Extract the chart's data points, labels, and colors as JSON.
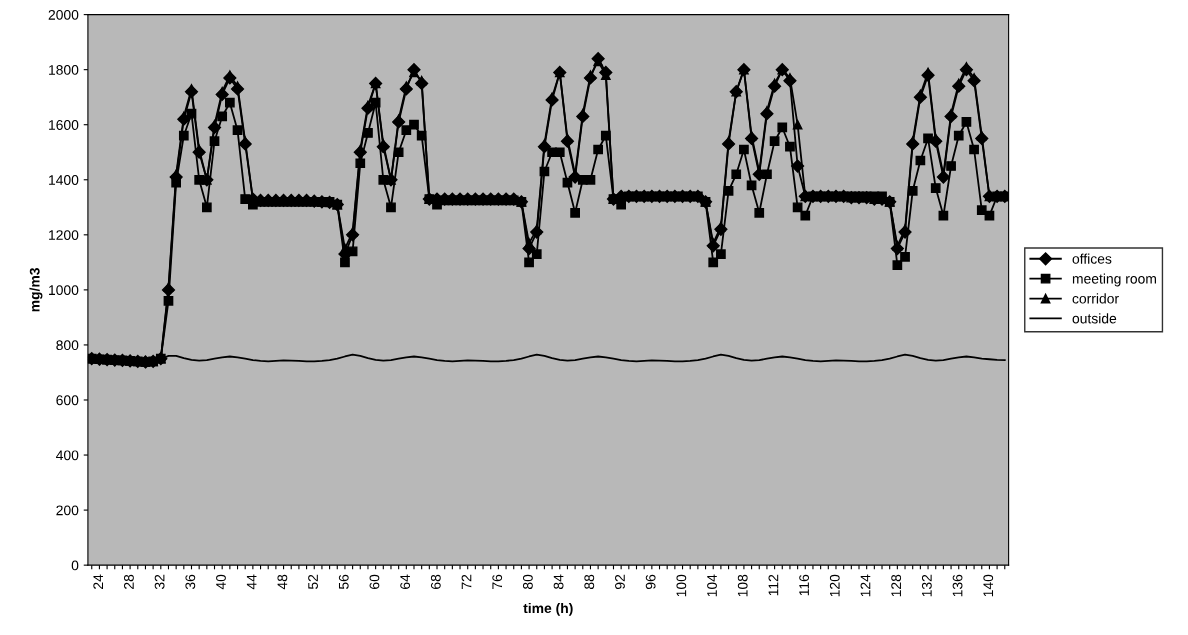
{
  "chart_data": {
    "type": "line",
    "xlabel": "time (h)",
    "ylabel": "mg/m3",
    "x": [
      23,
      24,
      25,
      26,
      27,
      28,
      29,
      30,
      31,
      32,
      33,
      34,
      35,
      36,
      37,
      38,
      39,
      40,
      41,
      42,
      43,
      44,
      45,
      46,
      47,
      48,
      49,
      50,
      51,
      52,
      53,
      54,
      55,
      56,
      57,
      58,
      59,
      60,
      61,
      62,
      63,
      64,
      65,
      66,
      67,
      68,
      69,
      70,
      71,
      72,
      73,
      74,
      75,
      76,
      77,
      78,
      79,
      80,
      81,
      82,
      83,
      84,
      85,
      86,
      87,
      88,
      89,
      90,
      91,
      92,
      93,
      94,
      95,
      96,
      97,
      98,
      99,
      100,
      101,
      102,
      103,
      104,
      105,
      106,
      107,
      108,
      109,
      110,
      111,
      112,
      113,
      114,
      115,
      116,
      117,
      118,
      119,
      120,
      121,
      122,
      123,
      124,
      125,
      126,
      127,
      128,
      129,
      130,
      131,
      132,
      133,
      134,
      135,
      136,
      137,
      138,
      139,
      140,
      141,
      142
    ],
    "series": [
      {
        "name": "offices",
        "color": "#000000",
        "marker": "diamond",
        "values": [
          750,
          748,
          747,
          745,
          744,
          742,
          740,
          738,
          740,
          750,
          1000,
          1410,
          1620,
          1720,
          1500,
          1400,
          1590,
          1710,
          1770,
          1730,
          1530,
          1330,
          1325,
          1325,
          1325,
          1325,
          1325,
          1325,
          1325,
          1322,
          1320,
          1318,
          1310,
          1130,
          1200,
          1500,
          1660,
          1750,
          1520,
          1400,
          1610,
          1730,
          1800,
          1750,
          1330,
          1330,
          1330,
          1330,
          1330,
          1330,
          1330,
          1330,
          1330,
          1330,
          1330,
          1330,
          1320,
          1150,
          1210,
          1520,
          1690,
          1790,
          1540,
          1410,
          1630,
          1770,
          1840,
          1790,
          1330,
          1340,
          1340,
          1340,
          1340,
          1340,
          1340,
          1340,
          1340,
          1340,
          1340,
          1340,
          1320,
          1160,
          1220,
          1530,
          1720,
          1800,
          1550,
          1420,
          1640,
          1740,
          1800,
          1760,
          1450,
          1340,
          1340,
          1340,
          1340,
          1340,
          1340,
          1335,
          1335,
          1335,
          1330,
          1330,
          1320,
          1150,
          1210,
          1530,
          1700,
          1780,
          1540,
          1410,
          1630,
          1740,
          1800,
          1760,
          1550,
          1340,
          1340,
          1340
        ]
      },
      {
        "name": "meeting room",
        "color": "#000000",
        "marker": "square",
        "values": [
          750,
          748,
          747,
          745,
          744,
          742,
          740,
          738,
          740,
          750,
          960,
          1390,
          1560,
          1640,
          1400,
          1300,
          1540,
          1630,
          1680,
          1580,
          1330,
          1310,
          1320,
          1320,
          1320,
          1320,
          1320,
          1320,
          1320,
          1320,
          1320,
          1320,
          1310,
          1100,
          1140,
          1460,
          1570,
          1680,
          1400,
          1300,
          1500,
          1580,
          1600,
          1560,
          1330,
          1310,
          1325,
          1325,
          1325,
          1325,
          1325,
          1325,
          1325,
          1325,
          1325,
          1325,
          1320,
          1100,
          1130,
          1430,
          1500,
          1500,
          1390,
          1280,
          1400,
          1400,
          1510,
          1560,
          1330,
          1310,
          1340,
          1340,
          1340,
          1340,
          1340,
          1340,
          1340,
          1340,
          1340,
          1340,
          1320,
          1100,
          1130,
          1360,
          1420,
          1510,
          1380,
          1280,
          1420,
          1540,
          1590,
          1520,
          1300,
          1270,
          1340,
          1340,
          1340,
          1340,
          1340,
          1340,
          1340,
          1340,
          1340,
          1340,
          1320,
          1090,
          1120,
          1360,
          1470,
          1550,
          1370,
          1270,
          1450,
          1560,
          1610,
          1510,
          1290,
          1270,
          1340,
          1340
        ]
      },
      {
        "name": "corridor",
        "color": "#000000",
        "marker": "triangle",
        "values": [
          750,
          748,
          747,
          745,
          744,
          742,
          740,
          738,
          740,
          750,
          1010,
          1420,
          1630,
          1730,
          1510,
          1400,
          1600,
          1720,
          1780,
          1740,
          1540,
          1330,
          1325,
          1325,
          1325,
          1325,
          1325,
          1325,
          1325,
          1322,
          1320,
          1318,
          1310,
          1150,
          1210,
          1510,
          1670,
          1750,
          1530,
          1400,
          1620,
          1740,
          1790,
          1760,
          1330,
          1330,
          1330,
          1330,
          1330,
          1330,
          1330,
          1330,
          1330,
          1330,
          1330,
          1330,
          1320,
          1170,
          1220,
          1530,
          1700,
          1790,
          1550,
          1420,
          1640,
          1780,
          1830,
          1780,
          1330,
          1340,
          1340,
          1340,
          1340,
          1340,
          1340,
          1340,
          1340,
          1340,
          1340,
          1340,
          1320,
          1170,
          1230,
          1540,
          1720,
          1800,
          1560,
          1430,
          1650,
          1750,
          1800,
          1770,
          1600,
          1340,
          1340,
          1340,
          1340,
          1340,
          1340,
          1335,
          1335,
          1335,
          1330,
          1330,
          1320,
          1160,
          1220,
          1540,
          1710,
          1790,
          1550,
          1420,
          1640,
          1750,
          1810,
          1770,
          1560,
          1340,
          1340,
          1340
        ]
      },
      {
        "name": "outside",
        "color": "#000000",
        "marker": "none",
        "values": [
          745,
          745,
          744,
          743,
          742,
          740,
          738,
          737,
          740,
          748,
          760,
          760,
          752,
          746,
          743,
          745,
          750,
          755,
          758,
          755,
          750,
          745,
          742,
          740,
          742,
          744,
          743,
          742,
          740,
          740,
          742,
          745,
          750,
          758,
          765,
          760,
          752,
          746,
          743,
          745,
          750,
          755,
          758,
          755,
          750,
          745,
          742,
          740,
          742,
          744,
          743,
          742,
          740,
          740,
          742,
          745,
          750,
          758,
          765,
          760,
          752,
          746,
          743,
          745,
          750,
          755,
          758,
          755,
          750,
          745,
          742,
          740,
          742,
          744,
          743,
          742,
          740,
          740,
          742,
          745,
          750,
          758,
          765,
          760,
          752,
          746,
          743,
          745,
          750,
          755,
          758,
          755,
          750,
          745,
          742,
          740,
          742,
          744,
          743,
          742,
          740,
          740,
          742,
          745,
          750,
          758,
          765,
          760,
          752,
          746,
          743,
          745,
          750,
          755,
          758,
          755,
          750,
          748,
          746,
          745
        ]
      }
    ],
    "xlim": [
      22.5,
      142.5
    ],
    "xticks": [
      {
        "value": 23,
        "label": null
      },
      {
        "value": 24,
        "label": "24"
      },
      {
        "value": 25,
        "label": null
      },
      {
        "value": 26,
        "label": null
      },
      {
        "value": 27,
        "label": null
      },
      {
        "value": 28,
        "label": "28"
      },
      {
        "value": 29,
        "label": null
      },
      {
        "value": 30,
        "label": null
      },
      {
        "value": 31,
        "label": null
      },
      {
        "value": 32,
        "label": "32"
      },
      {
        "value": 33,
        "label": null
      },
      {
        "value": 34,
        "label": null
      },
      {
        "value": 35,
        "label": null
      },
      {
        "value": 36,
        "label": "36"
      },
      {
        "value": 37,
        "label": null
      },
      {
        "value": 38,
        "label": null
      },
      {
        "value": 39,
        "label": null
      },
      {
        "value": 40,
        "label": "40"
      },
      {
        "value": 41,
        "label": null
      },
      {
        "value": 42,
        "label": null
      },
      {
        "value": 43,
        "label": null
      },
      {
        "value": 44,
        "label": "44"
      },
      {
        "value": 45,
        "label": null
      },
      {
        "value": 46,
        "label": null
      },
      {
        "value": 47,
        "label": null
      },
      {
        "value": 48,
        "label": "48"
      },
      {
        "value": 49,
        "label": null
      },
      {
        "value": 50,
        "label": null
      },
      {
        "value": 51,
        "label": null
      },
      {
        "value": 52,
        "label": "52"
      },
      {
        "value": 53,
        "label": null
      },
      {
        "value": 54,
        "label": null
      },
      {
        "value": 55,
        "label": null
      },
      {
        "value": 56,
        "label": "56"
      },
      {
        "value": 57,
        "label": null
      },
      {
        "value": 58,
        "label": null
      },
      {
        "value": 59,
        "label": null
      },
      {
        "value": 60,
        "label": "60"
      },
      {
        "value": 61,
        "label": null
      },
      {
        "value": 62,
        "label": null
      },
      {
        "value": 63,
        "label": null
      },
      {
        "value": 64,
        "label": "64"
      },
      {
        "value": 65,
        "label": null
      },
      {
        "value": 66,
        "label": null
      },
      {
        "value": 67,
        "label": null
      },
      {
        "value": 68,
        "label": "68"
      },
      {
        "value": 69,
        "label": null
      },
      {
        "value": 70,
        "label": null
      },
      {
        "value": 71,
        "label": null
      },
      {
        "value": 72,
        "label": "72"
      },
      {
        "value": 73,
        "label": null
      },
      {
        "value": 74,
        "label": null
      },
      {
        "value": 75,
        "label": null
      },
      {
        "value": 76,
        "label": "76"
      },
      {
        "value": 77,
        "label": null
      },
      {
        "value": 78,
        "label": null
      },
      {
        "value": 79,
        "label": null
      },
      {
        "value": 80,
        "label": "80"
      },
      {
        "value": 81,
        "label": null
      },
      {
        "value": 82,
        "label": null
      },
      {
        "value": 83,
        "label": null
      },
      {
        "value": 84,
        "label": "84"
      },
      {
        "value": 85,
        "label": null
      },
      {
        "value": 86,
        "label": null
      },
      {
        "value": 87,
        "label": null
      },
      {
        "value": 88,
        "label": "88"
      },
      {
        "value": 89,
        "label": null
      },
      {
        "value": 90,
        "label": null
      },
      {
        "value": 91,
        "label": null
      },
      {
        "value": 92,
        "label": "92"
      },
      {
        "value": 93,
        "label": null
      },
      {
        "value": 94,
        "label": null
      },
      {
        "value": 95,
        "label": null
      },
      {
        "value": 96,
        "label": "96"
      },
      {
        "value": 97,
        "label": null
      },
      {
        "value": 98,
        "label": null
      },
      {
        "value": 99,
        "label": null
      },
      {
        "value": 100,
        "label": "100"
      },
      {
        "value": 101,
        "label": null
      },
      {
        "value": 102,
        "label": null
      },
      {
        "value": 103,
        "label": null
      },
      {
        "value": 104,
        "label": "104"
      },
      {
        "value": 105,
        "label": null
      },
      {
        "value": 106,
        "label": null
      },
      {
        "value": 107,
        "label": null
      },
      {
        "value": 108,
        "label": "108"
      },
      {
        "value": 109,
        "label": null
      },
      {
        "value": 110,
        "label": null
      },
      {
        "value": 111,
        "label": null
      },
      {
        "value": 112,
        "label": "112"
      },
      {
        "value": 113,
        "label": null
      },
      {
        "value": 114,
        "label": null
      },
      {
        "value": 115,
        "label": null
      },
      {
        "value": 116,
        "label": "116"
      },
      {
        "value": 117,
        "label": null
      },
      {
        "value": 118,
        "label": null
      },
      {
        "value": 119,
        "label": null
      },
      {
        "value": 120,
        "label": "120"
      },
      {
        "value": 121,
        "label": null
      },
      {
        "value": 122,
        "label": null
      },
      {
        "value": 123,
        "label": null
      },
      {
        "value": 124,
        "label": "124"
      },
      {
        "value": 125,
        "label": null
      },
      {
        "value": 126,
        "label": null
      },
      {
        "value": 127,
        "label": null
      },
      {
        "value": 128,
        "label": "128"
      },
      {
        "value": 129,
        "label": null
      },
      {
        "value": 130,
        "label": null
      },
      {
        "value": 131,
        "label": null
      },
      {
        "value": 132,
        "label": "132"
      },
      {
        "value": 133,
        "label": null
      },
      {
        "value": 134,
        "label": null
      },
      {
        "value": 135,
        "label": null
      },
      {
        "value": 136,
        "label": "136"
      },
      {
        "value": 137,
        "label": null
      },
      {
        "value": 138,
        "label": null
      },
      {
        "value": 139,
        "label": null
      },
      {
        "value": 140,
        "label": "140"
      },
      {
        "value": 141,
        "label": null
      },
      {
        "value": 142,
        "label": null
      }
    ],
    "ylim": [
      0,
      2000
    ],
    "yticks": [
      0,
      200,
      400,
      600,
      800,
      1000,
      1200,
      1400,
      1600,
      1800,
      2000
    ],
    "grid": false,
    "legend": "right"
  }
}
